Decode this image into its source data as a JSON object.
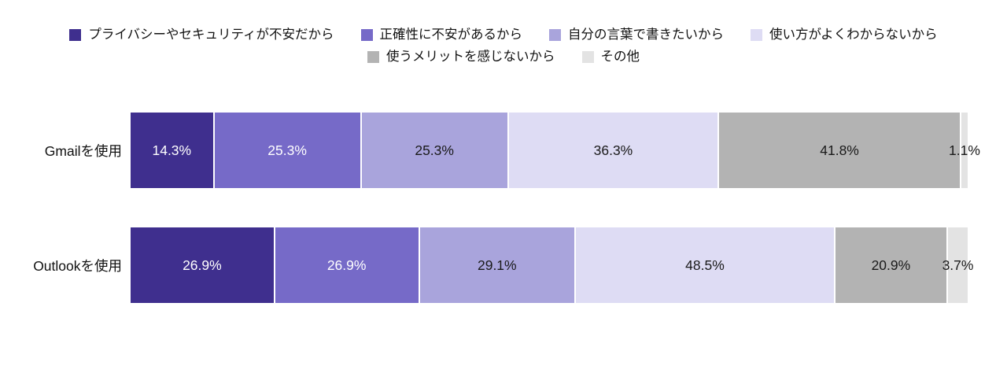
{
  "page": {
    "background": "#ffffff"
  },
  "chart_data": {
    "type": "bar",
    "orientation": "horizontal_stacked",
    "legend_position": "top",
    "grid": false,
    "value_suffix": "%",
    "bar_scaling": "segment width proportional to value / row total",
    "categories": [
      "Gmailを使用",
      "Outlookを使用"
    ],
    "series": [
      {
        "name": "プライバシーやセキュリティが不安だから",
        "color": "#3f2f8e",
        "label_color": "#ffffff",
        "values": [
          14.3,
          26.9
        ]
      },
      {
        "name": "正確性に不安があるから",
        "color": "#766ac8",
        "label_color": "#ffffff",
        "values": [
          25.3,
          26.9
        ]
      },
      {
        "name": "自分の言葉で書きたいから",
        "color": "#a9a4dc",
        "label_color": "#1a1a1a",
        "values": [
          25.3,
          29.1
        ]
      },
      {
        "name": "使い方がよくわからないから",
        "color": "#dedcf4",
        "label_color": "#1a1a1a",
        "values": [
          36.3,
          48.5
        ]
      },
      {
        "name": "使うメリットを感じないから",
        "color": "#b3b3b3",
        "label_color": "#1a1a1a",
        "values": [
          41.8,
          20.9
        ]
      },
      {
        "name": "その他",
        "color": "#e3e3e3",
        "label_color": "#1a1a1a",
        "values": [
          1.1,
          3.7
        ]
      }
    ]
  }
}
